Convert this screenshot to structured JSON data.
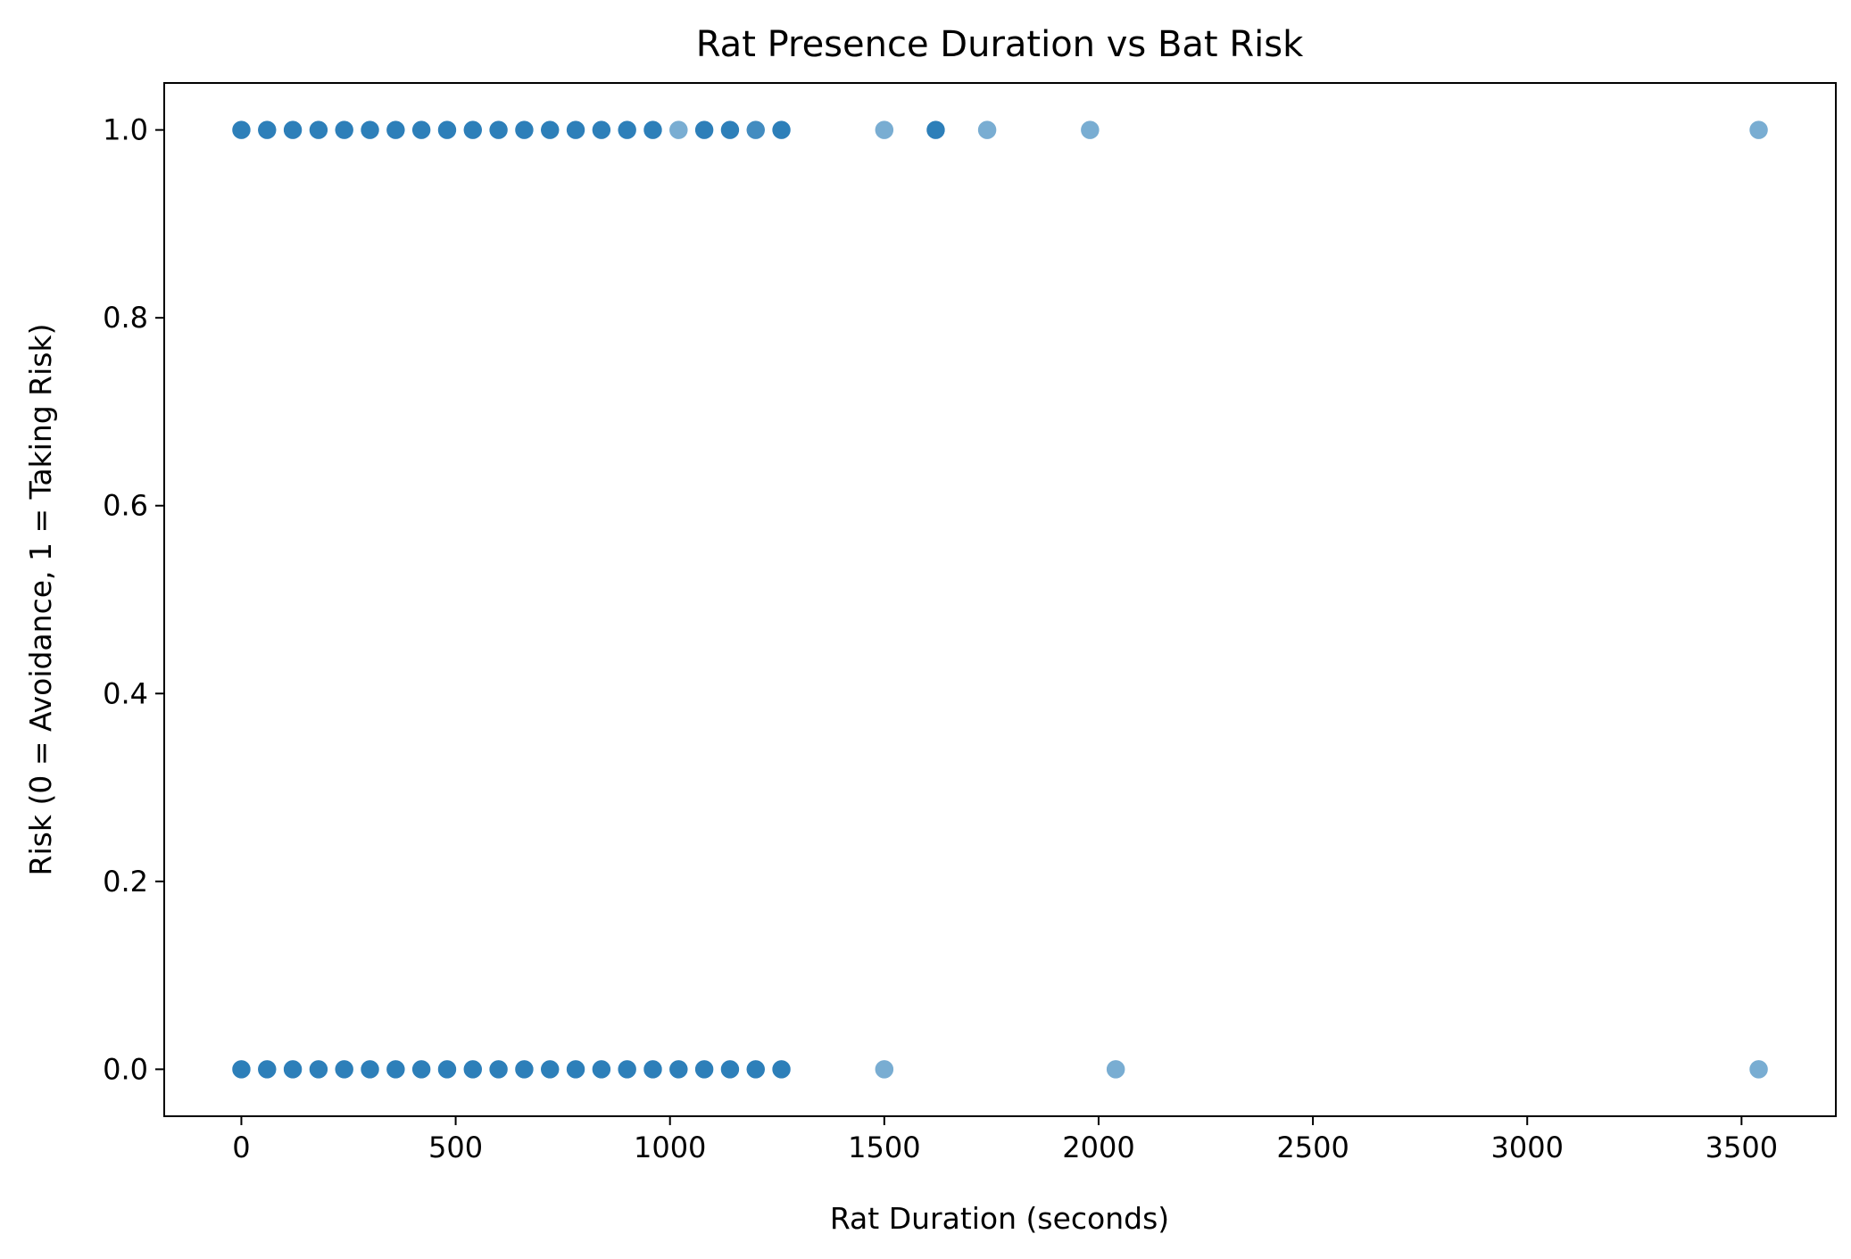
{
  "chart_data": {
    "type": "scatter",
    "title": "Rat Presence Duration vs Bat Risk",
    "xlabel": "Rat Duration (seconds)",
    "ylabel": "Risk (0 = Avoidance, 1 = Taking Risk)",
    "xlim": [
      -180,
      3720
    ],
    "ylim": [
      -0.05,
      1.05
    ],
    "xticks": [
      0,
      500,
      1000,
      1500,
      2000,
      2500,
      3000,
      3500
    ],
    "xtick_labels": [
      "0",
      "500",
      "1000",
      "1500",
      "2000",
      "2500",
      "3000",
      "3500"
    ],
    "yticks": [
      0.0,
      0.2,
      0.4,
      0.6,
      0.8,
      1.0
    ],
    "ytick_labels": [
      "0.0",
      "0.2",
      "0.4",
      "0.6",
      "0.8",
      "1.0"
    ],
    "grid": false,
    "marker_color": "#1f77b4",
    "marker_alpha": 0.6,
    "points": [
      {
        "x": 0,
        "y": 1,
        "n": 3
      },
      {
        "x": 60,
        "y": 1,
        "n": 3
      },
      {
        "x": 120,
        "y": 1,
        "n": 3
      },
      {
        "x": 180,
        "y": 1,
        "n": 3
      },
      {
        "x": 240,
        "y": 1,
        "n": 3
      },
      {
        "x": 300,
        "y": 1,
        "n": 3
      },
      {
        "x": 360,
        "y": 1,
        "n": 3
      },
      {
        "x": 420,
        "y": 1,
        "n": 3
      },
      {
        "x": 480,
        "y": 1,
        "n": 3
      },
      {
        "x": 540,
        "y": 1,
        "n": 3
      },
      {
        "x": 600,
        "y": 1,
        "n": 3
      },
      {
        "x": 660,
        "y": 1,
        "n": 3
      },
      {
        "x": 720,
        "y": 1,
        "n": 3
      },
      {
        "x": 780,
        "y": 1,
        "n": 3
      },
      {
        "x": 840,
        "y": 1,
        "n": 3
      },
      {
        "x": 900,
        "y": 1,
        "n": 3
      },
      {
        "x": 960,
        "y": 1,
        "n": 3
      },
      {
        "x": 1020,
        "y": 1,
        "n": 1
      },
      {
        "x": 1080,
        "y": 1,
        "n": 3
      },
      {
        "x": 1140,
        "y": 1,
        "n": 3
      },
      {
        "x": 1200,
        "y": 1,
        "n": 2
      },
      {
        "x": 1260,
        "y": 1,
        "n": 3
      },
      {
        "x": 1500,
        "y": 1,
        "n": 1
      },
      {
        "x": 1620,
        "y": 1,
        "n": 3
      },
      {
        "x": 1740,
        "y": 1,
        "n": 1
      },
      {
        "x": 1980,
        "y": 1,
        "n": 1
      },
      {
        "x": 3540,
        "y": 1,
        "n": 1
      },
      {
        "x": 0,
        "y": 0,
        "n": 3
      },
      {
        "x": 60,
        "y": 0,
        "n": 3
      },
      {
        "x": 120,
        "y": 0,
        "n": 3
      },
      {
        "x": 180,
        "y": 0,
        "n": 3
      },
      {
        "x": 240,
        "y": 0,
        "n": 3
      },
      {
        "x": 300,
        "y": 0,
        "n": 3
      },
      {
        "x": 360,
        "y": 0,
        "n": 3
      },
      {
        "x": 420,
        "y": 0,
        "n": 3
      },
      {
        "x": 480,
        "y": 0,
        "n": 3
      },
      {
        "x": 540,
        "y": 0,
        "n": 3
      },
      {
        "x": 600,
        "y": 0,
        "n": 3
      },
      {
        "x": 660,
        "y": 0,
        "n": 3
      },
      {
        "x": 720,
        "y": 0,
        "n": 3
      },
      {
        "x": 780,
        "y": 0,
        "n": 3
      },
      {
        "x": 840,
        "y": 0,
        "n": 3
      },
      {
        "x": 900,
        "y": 0,
        "n": 3
      },
      {
        "x": 960,
        "y": 0,
        "n": 3
      },
      {
        "x": 1020,
        "y": 0,
        "n": 3
      },
      {
        "x": 1080,
        "y": 0,
        "n": 3
      },
      {
        "x": 1140,
        "y": 0,
        "n": 3
      },
      {
        "x": 1200,
        "y": 0,
        "n": 3
      },
      {
        "x": 1260,
        "y": 0,
        "n": 3
      },
      {
        "x": 1500,
        "y": 0,
        "n": 1
      },
      {
        "x": 2040,
        "y": 0,
        "n": 1
      },
      {
        "x": 3540,
        "y": 0,
        "n": 1
      }
    ]
  }
}
